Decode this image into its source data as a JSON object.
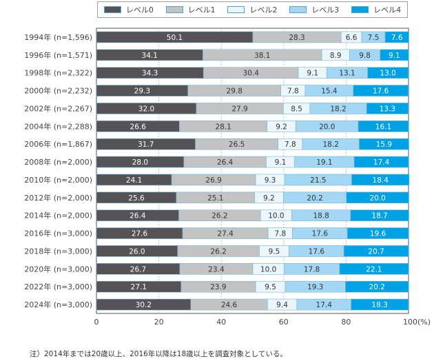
{
  "chart_data": {
    "type": "bar",
    "orientation": "horizontal",
    "stacked": true,
    "categories": [
      "1994年 (n=1,596)",
      "1996年 (n=1,571)",
      "1998年 (n=2,322)",
      "2000年 (n=2,232)",
      "2002年 (n=2,267)",
      "2004年 (n=2,288)",
      "2006年 (n=1,867)",
      "2008年 (n=2,000)",
      "2010年 (n=2,000)",
      "2012年 (n=2,000)",
      "2014年 (n=2,000)",
      "2016年 (n=3,000)",
      "2018年 (n=3,000)",
      "2020年 (n=3,000)",
      "2022年 (n=3,000)",
      "2024年 (n=3,000)"
    ],
    "series": [
      {
        "name": "レベル0",
        "color": "#555355",
        "label_color": "#ffffff",
        "values": [
          50.1,
          34.1,
          34.3,
          29.3,
          32.0,
          26.6,
          31.7,
          28.0,
          24.1,
          25.6,
          26.4,
          27.6,
          26.0,
          26.7,
          27.1,
          30.2
        ]
      },
      {
        "name": "レベル1",
        "color": "#c3c3c3",
        "label_color": "#333333",
        "values": [
          28.3,
          38.1,
          30.4,
          29.8,
          27.9,
          28.1,
          26.5,
          26.4,
          26.9,
          25.1,
          26.2,
          27.4,
          26.2,
          23.4,
          23.9,
          24.6
        ]
      },
      {
        "name": "レベル2",
        "color": "#eaf5fc",
        "label_color": "#333333",
        "values": [
          6.6,
          8.9,
          9.1,
          7.8,
          8.5,
          9.2,
          7.8,
          9.1,
          9.3,
          9.2,
          10.0,
          7.8,
          9.5,
          10.0,
          9.5,
          9.4
        ]
      },
      {
        "name": "レベル3",
        "color": "#a3d7f4",
        "label_color": "#333333",
        "values": [
          7.5,
          9.8,
          13.1,
          15.4,
          18.2,
          20.0,
          18.2,
          19.1,
          21.5,
          20.2,
          18.8,
          17.6,
          17.6,
          17.8,
          19.3,
          17.4
        ]
      },
      {
        "name": "レベル4",
        "color": "#00a2e6",
        "label_color": "#ffffff",
        "values": [
          7.6,
          9.1,
          13.0,
          17.6,
          13.3,
          16.1,
          15.9,
          17.4,
          18.4,
          20.0,
          18.7,
          19.6,
          20.7,
          22.1,
          20.2,
          18.3
        ]
      }
    ],
    "value_labels": [
      [
        "50.1",
        "28.3",
        "6.6",
        "7.5",
        "7.6"
      ],
      [
        "34.1",
        "38.1",
        "8.9",
        "9.8",
        "9.1"
      ],
      [
        "34.3",
        "30.4",
        "9.1",
        "13.1",
        "13.0"
      ],
      [
        "29.3",
        "29.8",
        "7.8",
        "15.4",
        "17.6"
      ],
      [
        "32.0",
        "27.9",
        "8.5",
        "18.2",
        "13.3"
      ],
      [
        "26.6",
        "28.1",
        "9.2",
        "20.0",
        "16.1"
      ],
      [
        "31.7",
        "26.5",
        "7.8",
        "18.2",
        "15.9"
      ],
      [
        "28.0",
        "26.4",
        "9.1",
        "19.1",
        "17.4"
      ],
      [
        "24.1",
        "26.9",
        "9.3",
        "21.5",
        "18.4"
      ],
      [
        "25.6",
        "25.1",
        "9.2",
        "20.2",
        "20.0"
      ],
      [
        "26.4",
        "26.2",
        "10.0",
        "18.8",
        "18.7"
      ],
      [
        "27.6",
        "27.4",
        "7.8",
        "17.6",
        "19.6"
      ],
      [
        "26.0",
        "26.2",
        "9.5",
        "17.6",
        "20.7"
      ],
      [
        "26.7",
        "23.4",
        "10.0",
        "17.8",
        "22.1"
      ],
      [
        "27.1",
        "23.9",
        "9.5",
        "19.3",
        "20.2"
      ],
      [
        "30.2",
        "24.6",
        "9.4",
        "17.4",
        "18.3"
      ]
    ],
    "xlim": [
      0,
      100
    ],
    "x_ticks": [
      0,
      20,
      40,
      60,
      80,
      100
    ],
    "x_tick_labels": [
      "0",
      "20",
      "40",
      "60",
      "80",
      "100(%)"
    ],
    "grid": "vertical dashed",
    "legend": "top",
    "title": "",
    "xlabel": "",
    "ylabel": ""
  },
  "note": "注）2014年までは20歳以上、2016年以降は18歳以上を調査対象としている。",
  "colors": {
    "axis": "#707070",
    "grid": "#b0b0b0",
    "bar_edge": "#6fb8e0"
  }
}
